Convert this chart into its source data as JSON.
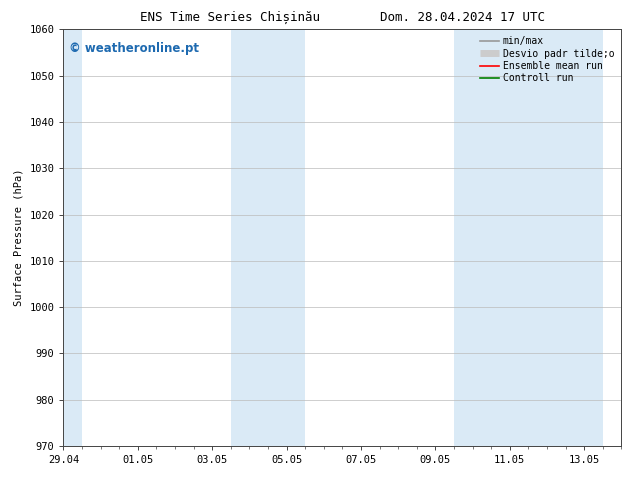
{
  "title_left": "ENS Time Series Chișinău",
  "title_right": "Dom. 28.04.2024 17 UTC",
  "ylabel": "Surface Pressure (hPa)",
  "ylim": [
    970,
    1060
  ],
  "yticks": [
    970,
    980,
    990,
    1000,
    1010,
    1020,
    1030,
    1040,
    1050,
    1060
  ],
  "xtick_labels": [
    "29.04",
    "01.05",
    "03.05",
    "05.05",
    "07.05",
    "09.05",
    "11.05",
    "13.05"
  ],
  "xtick_positions": [
    0,
    2,
    4,
    6,
    8,
    10,
    12,
    14
  ],
  "xlim": [
    0,
    15
  ],
  "shaded_regions": [
    {
      "xstart": 0.0,
      "xend": 0.5,
      "color": "#daeaf6"
    },
    {
      "xstart": 4.5,
      "xend": 6.5,
      "color": "#daeaf6"
    },
    {
      "xstart": 10.5,
      "xend": 14.5,
      "color": "#daeaf6"
    }
  ],
  "watermark": "© weatheronline.pt",
  "watermark_color": "#1e6ab0",
  "legend_items": [
    {
      "label": "min/max",
      "color": "#999999",
      "lw": 1.2,
      "ls": "-",
      "type": "line"
    },
    {
      "label": "Desvio padr tilde;o",
      "color": "#cccccc",
      "lw": 5,
      "ls": "-",
      "type": "band"
    },
    {
      "label": "Ensemble mean run",
      "color": "#ff0000",
      "lw": 1.2,
      "ls": "-",
      "type": "line"
    },
    {
      "label": "Controll run",
      "color": "#008000",
      "lw": 1.2,
      "ls": "-",
      "type": "line"
    }
  ],
  "background_color": "#ffffff",
  "grid_color": "#bbbbbb",
  "title_fontsize": 9,
  "axis_fontsize": 7.5,
  "tick_fontsize": 7.5,
  "watermark_fontsize": 8.5,
  "legend_fontsize": 7
}
